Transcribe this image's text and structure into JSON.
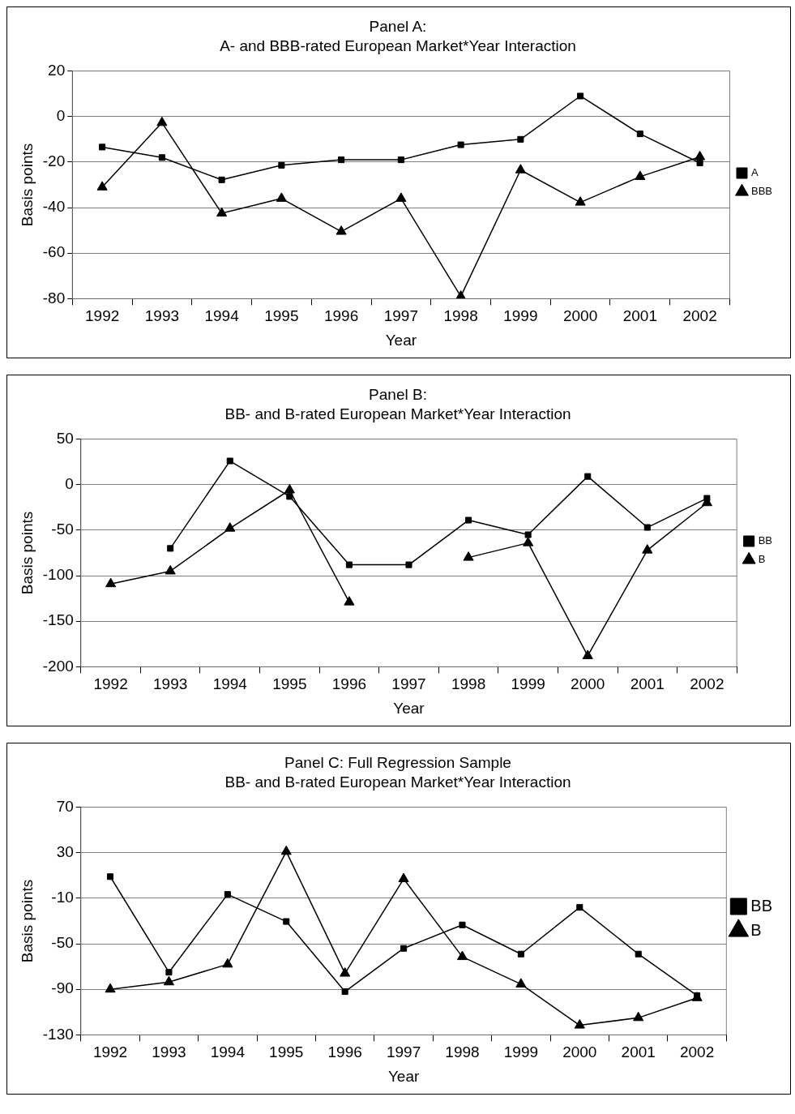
{
  "chart_data": [
    {
      "type": "line",
      "title": "Panel A:",
      "subtitle": "A- and BBB-rated European Market*Year Interaction",
      "xlabel": "Year",
      "ylabel": "Basis points",
      "categories": [
        "1992",
        "1993",
        "1994",
        "1995",
        "1996",
        "1997",
        "1998",
        "1999",
        "2000",
        "2001",
        "2002"
      ],
      "ylim": [
        -80,
        20
      ],
      "yticks": [
        -80,
        -60,
        -40,
        -20,
        0,
        20
      ],
      "grid": "y",
      "legend": "right",
      "series": [
        {
          "name": "A",
          "color": "#000000",
          "marker": "square",
          "values": [
            -13.4,
            -18,
            -27.8,
            -21.4,
            -19,
            -19,
            -12.4,
            -10,
            9,
            -7.6,
            -20.4
          ]
        },
        {
          "name": "BBB",
          "color": "#000000",
          "marker": "triangle",
          "values": [
            -31,
            -2.7,
            -42.5,
            -36,
            -50.5,
            -36,
            -79,
            -23.5,
            -37.7,
            -26.4,
            -17.7
          ]
        }
      ]
    },
    {
      "type": "line",
      "title": "Panel B:",
      "subtitle": "BB- and B-rated European Market*Year Interaction",
      "xlabel": "Year",
      "ylabel": "Basis points",
      "categories": [
        "1992",
        "1993",
        "1994",
        "1995",
        "1996",
        "1997",
        "1998",
        "1999",
        "2000",
        "2001",
        "2002"
      ],
      "ylim": [
        -200,
        50
      ],
      "yticks": [
        -200,
        -150,
        -100,
        -50,
        0,
        50
      ],
      "grid": "y",
      "legend": "right",
      "series": [
        {
          "name": "BB",
          "color": "#000000",
          "marker": "square",
          "values": [
            null,
            -70,
            26,
            -13,
            -88,
            -88,
            -39,
            -55,
            9,
            -47,
            -15
          ]
        },
        {
          "name": "B",
          "color": "#000000",
          "marker": "triangle",
          "values": [
            -109,
            -95,
            -48,
            -6,
            -129,
            null,
            -80,
            -64,
            -188,
            -72,
            -20
          ]
        }
      ]
    },
    {
      "type": "line",
      "title": "Panel C: Full Regression Sample",
      "subtitle": "BB- and B-rated European Market*Year Interaction",
      "xlabel": "Year",
      "ylabel": "Basis points",
      "categories": [
        "1992",
        "1993",
        "1994",
        "1995",
        "1996",
        "1997",
        "1998",
        "1999",
        "2000",
        "2001",
        "2002"
      ],
      "ylim": [
        -130,
        70
      ],
      "yticks": [
        -130,
        -90,
        -50,
        -10,
        30,
        70
      ],
      "grid": "y",
      "legend": "right",
      "series": [
        {
          "name": "BB",
          "color": "#000000",
          "marker": "square",
          "values": [
            9,
            -75,
            -6.6,
            -30.4,
            -92,
            -54,
            -33.4,
            -59,
            -18,
            -59,
            -95.5
          ]
        },
        {
          "name": "B",
          "color": "#000000",
          "marker": "triangle",
          "values": [
            -90,
            -83.6,
            -68,
            31,
            -76,
            7,
            -61.4,
            -85.5,
            -121.6,
            -115,
            -97.5
          ]
        }
      ]
    }
  ]
}
